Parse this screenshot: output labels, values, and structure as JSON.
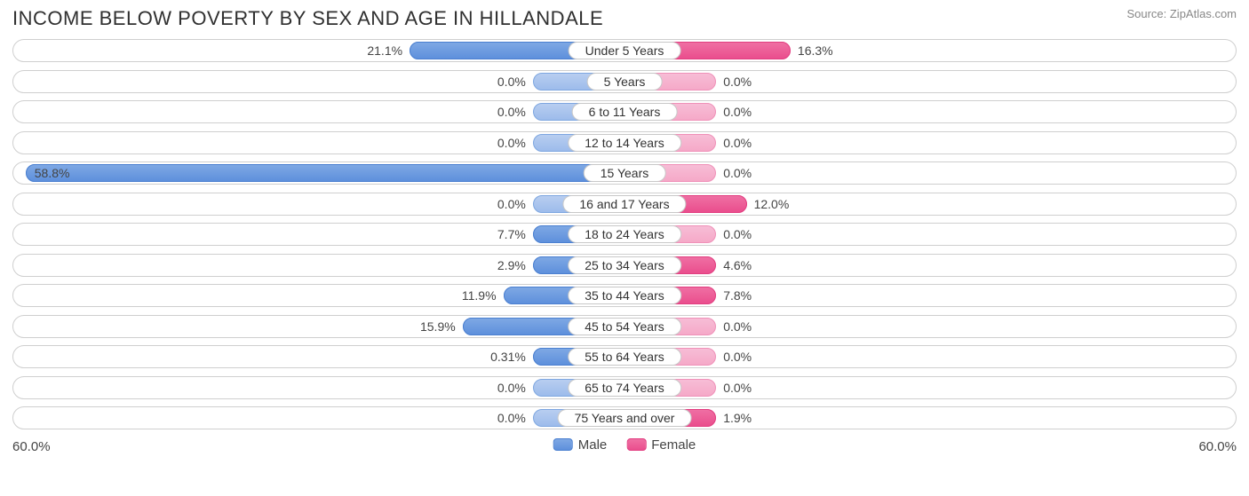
{
  "title": "INCOME BELOW POVERTY BY SEX AND AGE IN HILLANDALE",
  "source": "Source: ZipAtlas.com",
  "axis_max_pct": 60.0,
  "axis_max_label_left": "60.0%",
  "axis_max_label_right": "60.0%",
  "base_bar_pct": 9.0,
  "legend": {
    "male": "Male",
    "female": "Female"
  },
  "colors": {
    "male_bar": "#5e90dc",
    "male_base": "#9dbceb",
    "female_bar": "#ea4e8d",
    "female_base": "#f5a9c8",
    "track_border": "#cfcfcf",
    "text": "#444444",
    "title_text": "#303030",
    "source_text": "#888888",
    "background": "#ffffff"
  },
  "rows": [
    {
      "label": "Under 5 Years",
      "male": 21.1,
      "male_str": "21.1%",
      "female": 16.3,
      "female_str": "16.3%"
    },
    {
      "label": "5 Years",
      "male": 0.0,
      "male_str": "0.0%",
      "female": 0.0,
      "female_str": "0.0%"
    },
    {
      "label": "6 to 11 Years",
      "male": 0.0,
      "male_str": "0.0%",
      "female": 0.0,
      "female_str": "0.0%"
    },
    {
      "label": "12 to 14 Years",
      "male": 0.0,
      "male_str": "0.0%",
      "female": 0.0,
      "female_str": "0.0%"
    },
    {
      "label": "15 Years",
      "male": 58.8,
      "male_str": "58.8%",
      "female": 0.0,
      "female_str": "0.0%"
    },
    {
      "label": "16 and 17 Years",
      "male": 0.0,
      "male_str": "0.0%",
      "female": 12.0,
      "female_str": "12.0%"
    },
    {
      "label": "18 to 24 Years",
      "male": 7.7,
      "male_str": "7.7%",
      "female": 0.0,
      "female_str": "0.0%"
    },
    {
      "label": "25 to 34 Years",
      "male": 2.9,
      "male_str": "2.9%",
      "female": 4.6,
      "female_str": "4.6%"
    },
    {
      "label": "35 to 44 Years",
      "male": 11.9,
      "male_str": "11.9%",
      "female": 7.8,
      "female_str": "7.8%"
    },
    {
      "label": "45 to 54 Years",
      "male": 15.9,
      "male_str": "15.9%",
      "female": 0.0,
      "female_str": "0.0%"
    },
    {
      "label": "55 to 64 Years",
      "male": 0.31,
      "male_str": "0.31%",
      "female": 0.0,
      "female_str": "0.0%"
    },
    {
      "label": "65 to 74 Years",
      "male": 0.0,
      "male_str": "0.0%",
      "female": 0.0,
      "female_str": "0.0%"
    },
    {
      "label": "75 Years and over",
      "male": 0.0,
      "male_str": "0.0%",
      "female": 1.9,
      "female_str": "1.9%"
    }
  ]
}
